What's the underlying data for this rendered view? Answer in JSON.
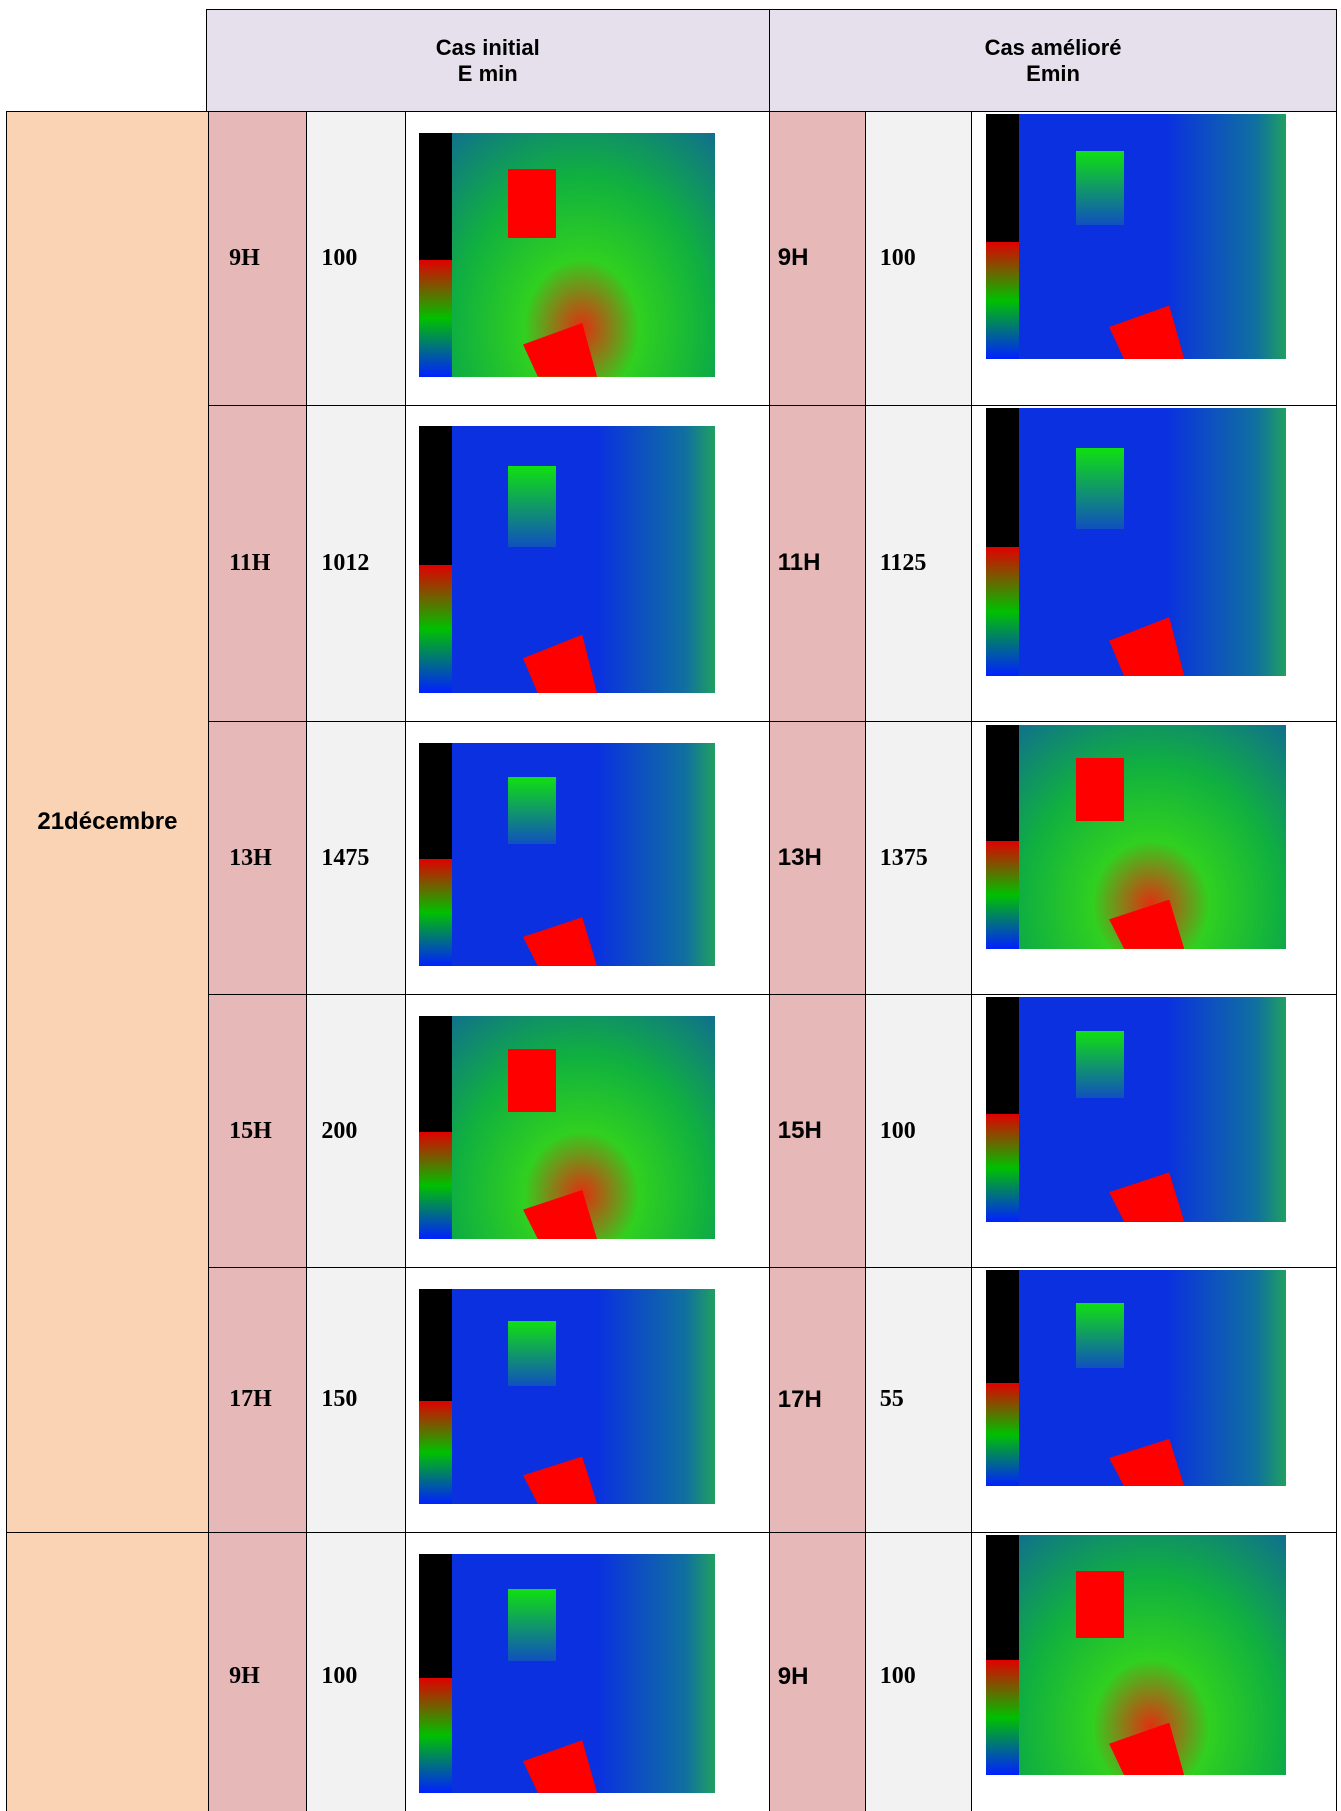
{
  "header": {
    "initial_title": "Cas initial",
    "initial_sub": "E min",
    "improved_title": "Cas amélioré",
    "improved_sub": "Emin"
  },
  "groups": [
    {
      "date": "21décembre",
      "rows": [
        {
          "hour_initial": "9H",
          "emin_initial": "100",
          "hour_improved": "9H",
          "emin_improved": "100"
        },
        {
          "hour_initial": "11H",
          "emin_initial": "1012",
          "hour_improved": "11H",
          "emin_improved": "1125"
        },
        {
          "hour_initial": "13H",
          "emin_initial": "1475",
          "hour_improved": "13H",
          "emin_improved": "1375"
        },
        {
          "hour_initial": "15H",
          "emin_initial": "200",
          "hour_improved": "15H",
          "emin_improved": "100"
        },
        {
          "hour_initial": "17H",
          "emin_initial": "150",
          "hour_improved": "17H",
          "emin_improved": "55"
        }
      ]
    },
    {
      "rows": [
        {
          "hour_initial": "9H",
          "emin_initial": "100",
          "hour_improved": "9H",
          "emin_improved": "100"
        }
      ]
    }
  ]
}
